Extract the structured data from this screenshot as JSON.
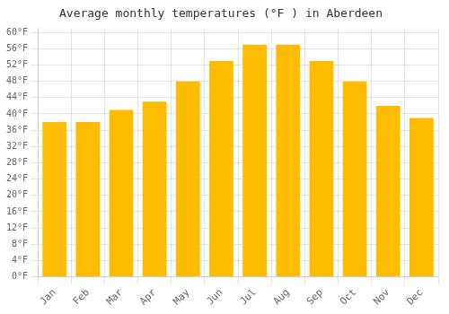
{
  "chart_data": {
    "type": "bar",
    "title": "Average monthly temperatures (°F ) in Aberdeen",
    "categories": [
      "Jan",
      "Feb",
      "Mar",
      "Apr",
      "May",
      "Jun",
      "Jul",
      "Aug",
      "Sep",
      "Oct",
      "Nov",
      "Dec"
    ],
    "values": [
      38,
      38,
      41,
      43,
      48,
      53,
      57,
      57,
      53,
      48,
      42,
      39
    ],
    "color": "#FFBB00",
    "ylim": [
      0,
      61
    ],
    "yticks": [
      {
        "value": 0,
        "label": "0°F"
      },
      {
        "value": 4,
        "label": "4°F"
      },
      {
        "value": 8,
        "label": "8°F"
      },
      {
        "value": 12,
        "label": "12°F"
      },
      {
        "value": 16,
        "label": "16°F"
      },
      {
        "value": 20,
        "label": "20°F"
      },
      {
        "value": 24,
        "label": "24°F"
      },
      {
        "value": 28,
        "label": "28°F"
      },
      {
        "value": 32,
        "label": "32°F"
      },
      {
        "value": 36,
        "label": "36°F"
      },
      {
        "value": 40,
        "label": "40°F"
      },
      {
        "value": 44,
        "label": "44°F"
      },
      {
        "value": 48,
        "label": "48°F"
      },
      {
        "value": 52,
        "label": "52°F"
      },
      {
        "value": 56,
        "label": "56°F"
      },
      {
        "value": 60,
        "label": "60°F"
      }
    ],
    "grid": true
  }
}
